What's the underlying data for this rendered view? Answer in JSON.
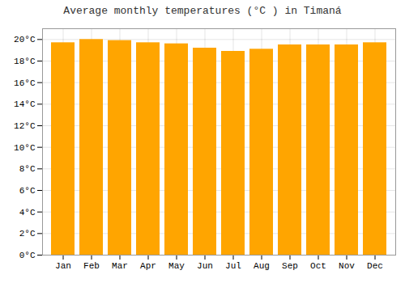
{
  "chart_data": {
    "type": "bar",
    "title": "Average monthly temperatures (°C ) in Timaná",
    "categories": [
      "Jan",
      "Feb",
      "Mar",
      "Apr",
      "May",
      "Jun",
      "Jul",
      "Aug",
      "Sep",
      "Oct",
      "Nov",
      "Dec"
    ],
    "values": [
      19.7,
      20.0,
      19.9,
      19.7,
      19.6,
      19.2,
      18.9,
      19.1,
      19.5,
      19.5,
      19.5,
      19.7
    ],
    "color": "#FFA500",
    "ylim": [
      0,
      21
    ],
    "yticks": [
      {
        "value": 0,
        "label": "0°C"
      },
      {
        "value": 2,
        "label": "2°C"
      },
      {
        "value": 4,
        "label": "4°C"
      },
      {
        "value": 6,
        "label": "6°C"
      },
      {
        "value": 8,
        "label": "8°C"
      },
      {
        "value": 10,
        "label": "10°C"
      },
      {
        "value": 12,
        "label": "12°C"
      },
      {
        "value": 14,
        "label": "14°C"
      },
      {
        "value": 16,
        "label": "16°C"
      },
      {
        "value": 18,
        "label": "18°C"
      },
      {
        "value": 20,
        "label": "20°C"
      }
    ],
    "grid": true
  }
}
